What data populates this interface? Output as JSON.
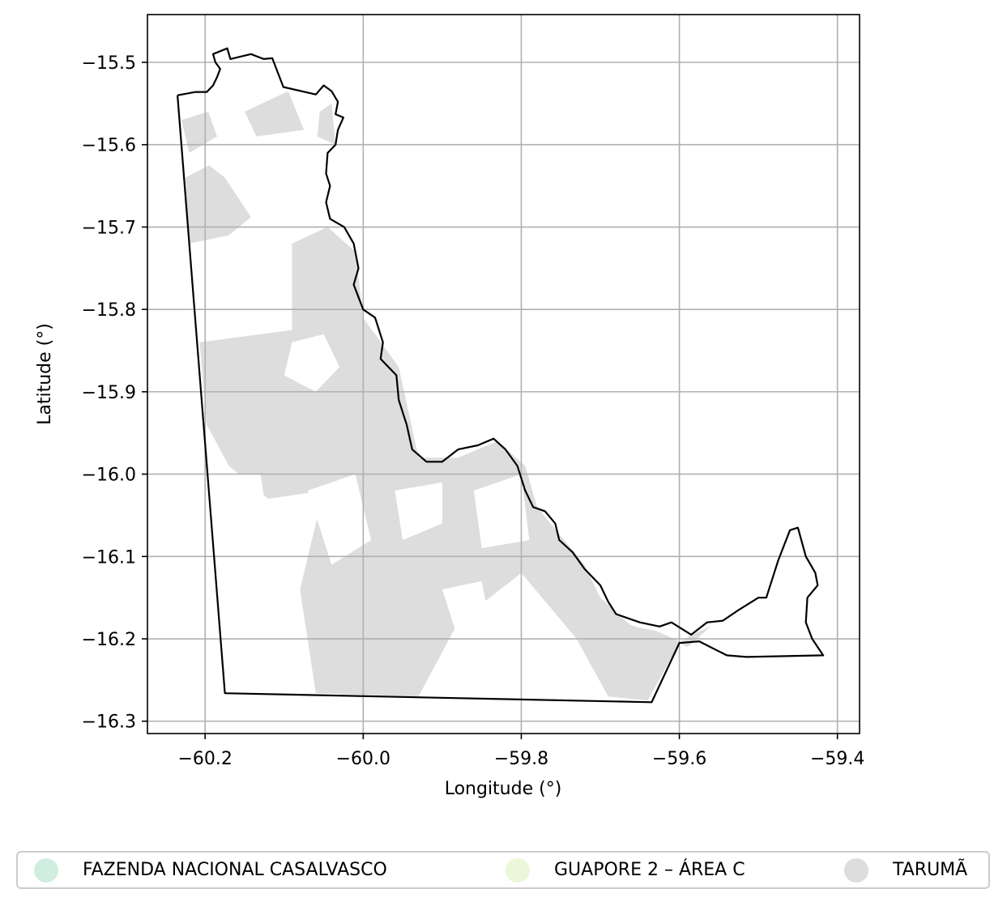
{
  "chart_data": {
    "type": "map",
    "xlabel": "Longitude (°)",
    "ylabel": "Latitude (°)",
    "xlim": [
      -60.273,
      -59.372
    ],
    "ylim": [
      -16.315,
      -15.442
    ],
    "x_ticks": [
      -60.2,
      -60.0,
      -59.8,
      -59.6,
      -59.4
    ],
    "x_tick_labels": [
      "−60.2",
      "−60.0",
      "−59.8",
      "−59.6",
      "−59.4"
    ],
    "y_ticks": [
      -15.5,
      -15.6,
      -15.7,
      -15.8,
      -15.9,
      -16.0,
      -16.1,
      -16.2,
      -16.3
    ],
    "y_tick_labels": [
      "−15.5",
      "−15.6",
      "−15.7",
      "−15.8",
      "−15.9",
      "−16.0",
      "−16.1",
      "−16.2",
      "−16.3"
    ],
    "grid": true,
    "legend_placement": "bottom-center",
    "boundary": {
      "stroke": "#000000",
      "coords": [
        [
          -60.235,
          -15.54
        ],
        [
          -60.212,
          -15.536
        ],
        [
          -60.198,
          -15.536
        ],
        [
          -60.19,
          -15.528
        ],
        [
          -60.185,
          -15.518
        ],
        [
          -60.181,
          -15.508
        ],
        [
          -60.187,
          -15.5
        ],
        [
          -60.19,
          -15.49
        ],
        [
          -60.172,
          -15.483
        ],
        [
          -60.168,
          -15.496
        ],
        [
          -60.142,
          -15.49
        ],
        [
          -60.126,
          -15.496
        ],
        [
          -60.115,
          -15.495
        ],
        [
          -60.101,
          -15.53
        ],
        [
          -60.06,
          -15.539
        ],
        [
          -60.05,
          -15.528
        ],
        [
          -60.04,
          -15.535
        ],
        [
          -60.032,
          -15.548
        ],
        [
          -60.035,
          -15.563
        ],
        [
          -60.025,
          -15.567
        ],
        [
          -60.032,
          -15.582
        ],
        [
          -60.035,
          -15.6
        ],
        [
          -60.045,
          -15.61
        ],
        [
          -60.047,
          -15.635
        ],
        [
          -60.042,
          -15.65
        ],
        [
          -60.047,
          -15.67
        ],
        [
          -60.042,
          -15.69
        ],
        [
          -60.024,
          -15.7
        ],
        [
          -60.012,
          -15.72
        ],
        [
          -60.006,
          -15.75
        ],
        [
          -60.012,
          -15.77
        ],
        [
          -60.0,
          -15.8
        ],
        [
          -59.985,
          -15.81
        ],
        [
          -59.975,
          -15.84
        ],
        [
          -59.978,
          -15.86
        ],
        [
          -59.958,
          -15.88
        ],
        [
          -59.955,
          -15.91
        ],
        [
          -59.945,
          -15.94
        ],
        [
          -59.938,
          -15.97
        ],
        [
          -59.92,
          -15.985
        ],
        [
          -59.9,
          -15.985
        ],
        [
          -59.88,
          -15.97
        ],
        [
          -59.855,
          -15.965
        ],
        [
          -59.835,
          -15.957
        ],
        [
          -59.82,
          -15.97
        ],
        [
          -59.805,
          -15.99
        ],
        [
          -59.795,
          -16.02
        ],
        [
          -59.785,
          -16.04
        ],
        [
          -59.77,
          -16.045
        ],
        [
          -59.757,
          -16.06
        ],
        [
          -59.752,
          -16.08
        ],
        [
          -59.735,
          -16.095
        ],
        [
          -59.72,
          -16.115
        ],
        [
          -59.7,
          -16.135
        ],
        [
          -59.69,
          -16.155
        ],
        [
          -59.68,
          -16.17
        ],
        [
          -59.65,
          -16.18
        ],
        [
          -59.625,
          -16.185
        ],
        [
          -59.61,
          -16.18
        ],
        [
          -59.585,
          -16.195
        ],
        [
          -59.565,
          -16.18
        ],
        [
          -59.545,
          -16.178
        ],
        [
          -59.525,
          -16.165
        ],
        [
          -59.5,
          -16.15
        ],
        [
          -59.49,
          -16.15
        ],
        [
          -59.475,
          -16.105
        ],
        [
          -59.46,
          -16.068
        ],
        [
          -59.45,
          -16.065
        ],
        [
          -59.44,
          -16.1
        ],
        [
          -59.428,
          -16.12
        ],
        [
          -59.425,
          -16.135
        ],
        [
          -59.438,
          -16.15
        ],
        [
          -59.44,
          -16.18
        ],
        [
          -59.432,
          -16.2
        ],
        [
          -59.418,
          -16.22
        ],
        [
          -59.515,
          -16.222
        ],
        [
          -59.54,
          -16.22
        ],
        [
          -59.575,
          -16.203
        ],
        [
          -59.6,
          -16.205
        ],
        [
          -59.635,
          -16.277
        ],
        [
          -60.175,
          -16.266
        ],
        [
          -60.235,
          -15.54
        ]
      ]
    },
    "series": [
      {
        "name": "FAZENDA NACIONAL CASALVASCO",
        "color": "#cfeee0",
        "polygons": []
      },
      {
        "name": "GUAPORE 2 – ÁREA C",
        "color": "#eaf7d8",
        "polygons": []
      },
      {
        "name": "TARUMÃ",
        "color": "#dddddd",
        "polygons": [
          [
            [
              -60.23,
              -15.57
            ],
            [
              -60.196,
              -15.56
            ],
            [
              -60.185,
              -15.59
            ],
            [
              -60.22,
              -15.61
            ]
          ],
          [
            [
              -60.225,
              -15.64
            ],
            [
              -60.195,
              -15.625
            ],
            [
              -60.175,
              -15.64
            ],
            [
              -60.142,
              -15.688
            ],
            [
              -60.17,
              -15.71
            ],
            [
              -60.22,
              -15.72
            ]
          ],
          [
            [
              -60.15,
              -15.56
            ],
            [
              -60.095,
              -15.535
            ],
            [
              -60.075,
              -15.582
            ],
            [
              -60.135,
              -15.59
            ]
          ],
          [
            [
              -60.055,
              -15.56
            ],
            [
              -60.04,
              -15.55
            ],
            [
              -60.035,
              -15.6
            ],
            [
              -60.058,
              -15.59
            ]
          ],
          [
            [
              -60.207,
              -15.84
            ],
            [
              -60.09,
              -15.825
            ],
            [
              -60.09,
              -15.72
            ],
            [
              -60.045,
              -15.7
            ],
            [
              -60.01,
              -15.73
            ],
            [
              -60.0,
              -15.81
            ],
            [
              -59.955,
              -15.87
            ],
            [
              -59.93,
              -15.98
            ],
            [
              -59.88,
              -15.98
            ],
            [
              -59.83,
              -15.96
            ],
            [
              -59.795,
              -15.99
            ],
            [
              -59.78,
              -16.04
            ],
            [
              -59.72,
              -16.11
            ],
            [
              -59.7,
              -16.15
            ],
            [
              -59.66,
              -16.185
            ],
            [
              -59.63,
              -16.19
            ],
            [
              -59.6,
              -16.203
            ],
            [
              -59.64,
              -16.275
            ],
            [
              -59.69,
              -16.27
            ],
            [
              -59.73,
              -16.2
            ],
            [
              -59.8,
              -16.12
            ],
            [
              -59.88,
              -16.18
            ],
            [
              -59.93,
              -16.27
            ],
            [
              -60.06,
              -16.266
            ],
            [
              -60.08,
              -16.14
            ],
            [
              -60.05,
              -16.02
            ],
            [
              -60.12,
              -16.03
            ],
            [
              -60.17,
              -15.99
            ],
            [
              -60.198,
              -15.94
            ]
          ],
          [
            [
              -59.67,
              -16.18
            ],
            [
              -59.6,
              -16.205
            ],
            [
              -59.64,
              -16.275
            ],
            [
              -59.68,
              -16.24
            ]
          ],
          [
            [
              -59.6,
              -16.205
            ],
            [
              -59.585,
              -16.195
            ],
            [
              -59.56,
              -16.185
            ],
            [
              -59.59,
              -16.21
            ]
          ]
        ]
      }
    ],
    "holes": [
      [
        [
          -60.09,
          -15.84
        ],
        [
          -60.05,
          -15.83
        ],
        [
          -60.03,
          -15.87
        ],
        [
          -60.06,
          -15.9
        ],
        [
          -60.1,
          -15.88
        ]
      ],
      [
        [
          -60.07,
          -16.02
        ],
        [
          -60.01,
          -16.0
        ],
        [
          -59.99,
          -16.08
        ],
        [
          -60.04,
          -16.11
        ]
      ],
      [
        [
          -59.96,
          -16.02
        ],
        [
          -59.9,
          -16.01
        ],
        [
          -59.9,
          -16.06
        ],
        [
          -59.95,
          -16.08
        ]
      ],
      [
        [
          -59.86,
          -16.02
        ],
        [
          -59.8,
          -16.0
        ],
        [
          -59.79,
          -16.08
        ],
        [
          -59.85,
          -16.09
        ]
      ],
      [
        [
          -60.18,
          -16.0
        ],
        [
          -60.13,
          -16.0
        ],
        [
          -60.12,
          -16.06
        ],
        [
          -60.17,
          -16.08
        ]
      ],
      [
        [
          -59.9,
          -16.14
        ],
        [
          -59.85,
          -16.13
        ],
        [
          -59.84,
          -16.18
        ],
        [
          -59.88,
          -16.2
        ]
      ]
    ]
  },
  "legend": {
    "items": [
      {
        "label": "FAZENDA NACIONAL CASALVASCO",
        "color": "#cfeee0"
      },
      {
        "label": "GUAPORE 2 – ÁREA C",
        "color": "#eaf7d8"
      },
      {
        "label": "TARUMÃ",
        "color": "#dddddd"
      }
    ]
  }
}
